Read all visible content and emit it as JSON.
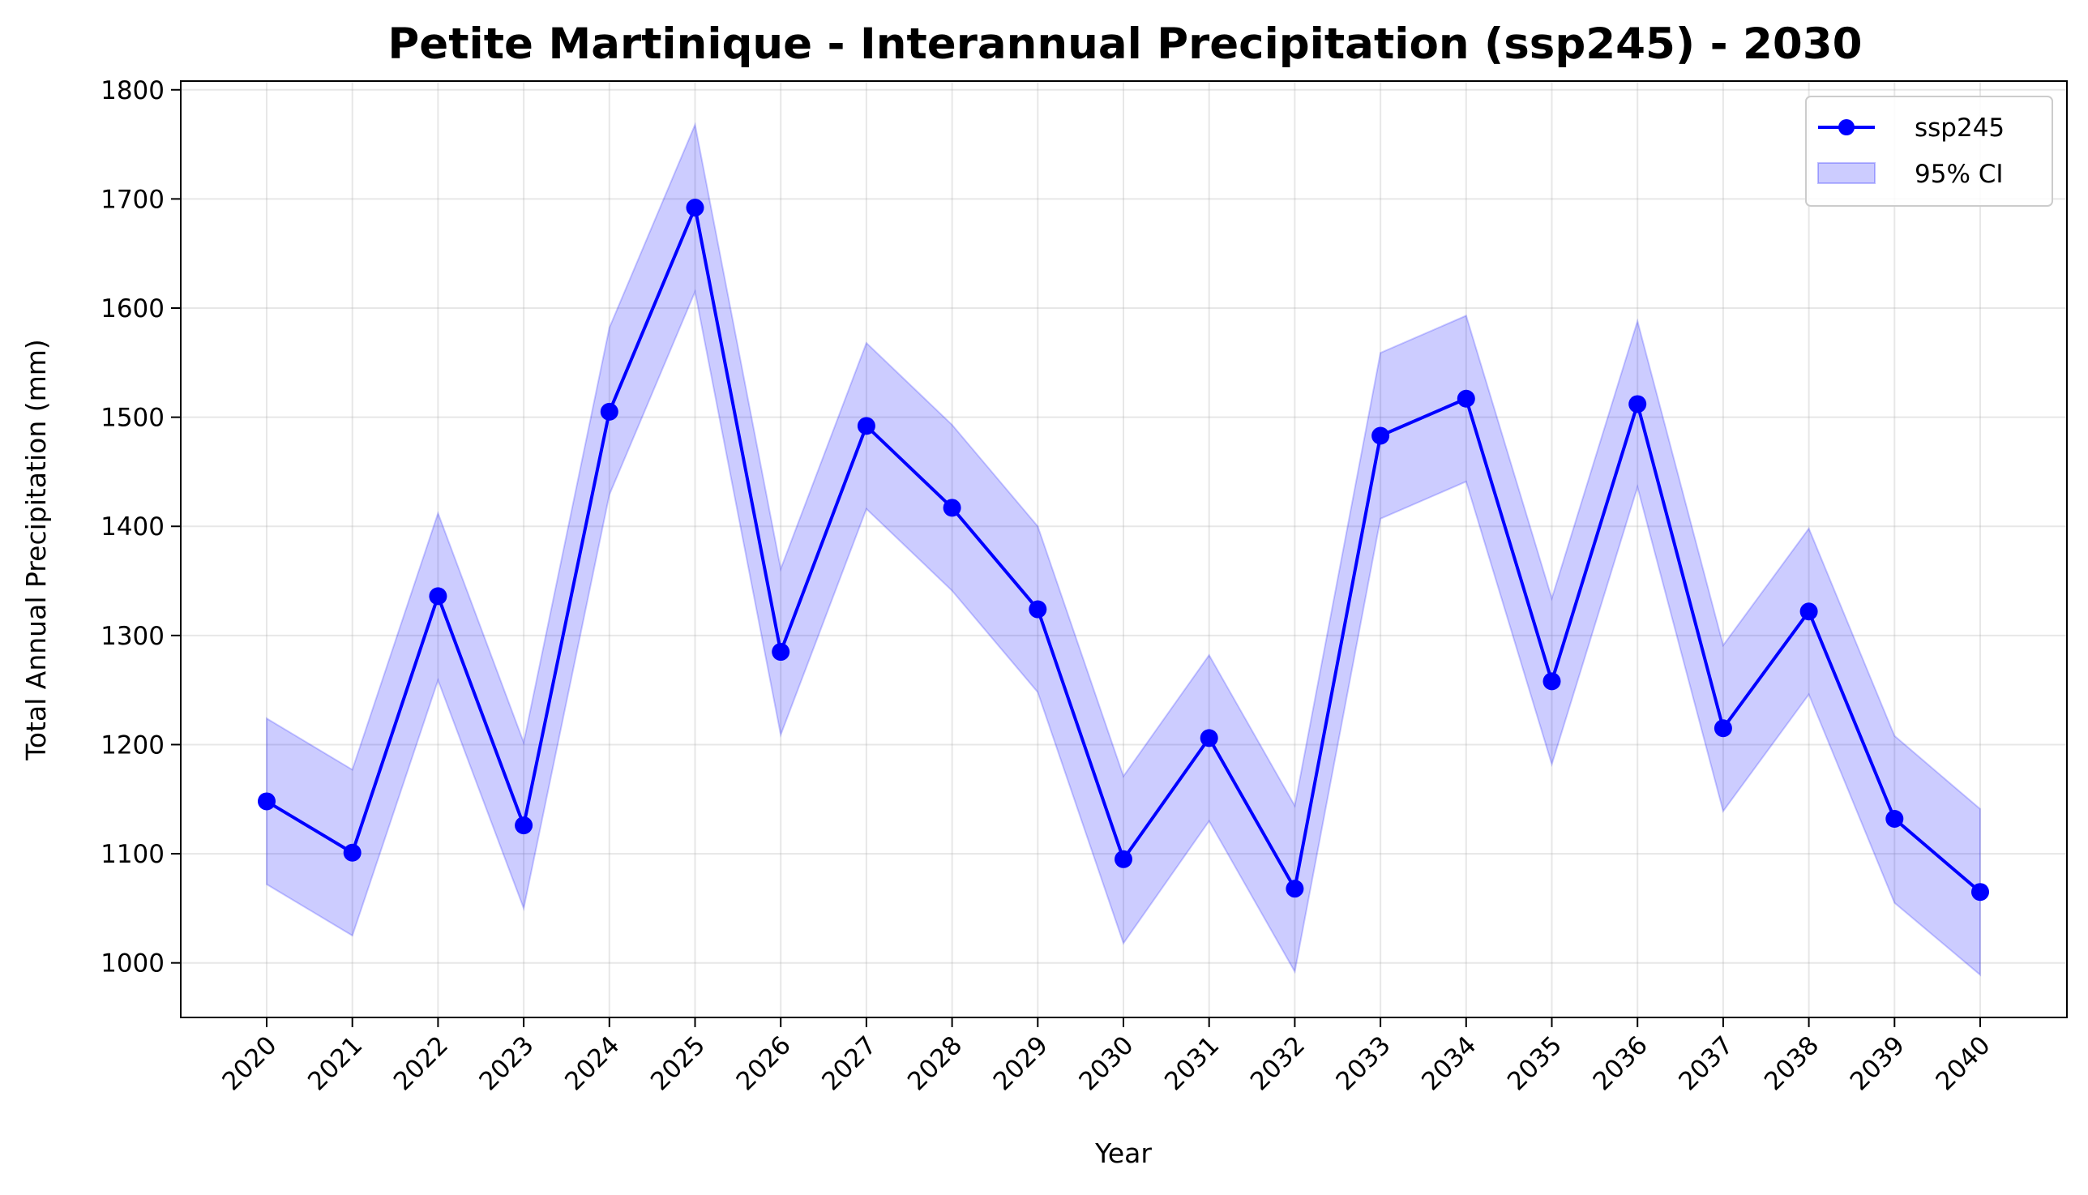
{
  "chart_data": {
    "type": "line",
    "title": "Petite Martinique - Interannual Precipitation (ssp245) - 2030",
    "xlabel": "Year",
    "ylabel": "Total Annual Precipitation (mm)",
    "x": [
      "2020",
      "2021",
      "2022",
      "2023",
      "2024",
      "2025",
      "2026",
      "2027",
      "2028",
      "2029",
      "2030",
      "2031",
      "2032",
      "2033",
      "2034",
      "2035",
      "2036",
      "2037",
      "2038",
      "2039",
      "2040"
    ],
    "ylim": [
      950,
      1808
    ],
    "yticks": [
      1000,
      1100,
      1200,
      1300,
      1400,
      1500,
      1600,
      1700,
      1800
    ],
    "grid": true,
    "legend_position": "top-right",
    "series": [
      {
        "name": "ssp245",
        "color": "#0000ff",
        "marker": "circle",
        "values": [
          1148,
          1101,
          1336,
          1126,
          1505,
          1692,
          1285,
          1492,
          1417,
          1324,
          1095,
          1206,
          1068,
          1483,
          1517,
          1258,
          1512,
          1215,
          1322,
          1132,
          1065
        ]
      }
    ],
    "confidence_band": {
      "name": "95% CI",
      "color": "#0000ff",
      "lower": [
        1072,
        1025,
        1259,
        1050,
        1429,
        1615,
        1209,
        1416,
        1341,
        1248,
        1018,
        1130,
        992,
        1407,
        1441,
        1182,
        1436,
        1139,
        1246,
        1055,
        989
      ],
      "upper": [
        1224,
        1177,
        1412,
        1202,
        1582,
        1768,
        1361,
        1568,
        1493,
        1400,
        1171,
        1282,
        1144,
        1559,
        1593,
        1334,
        1588,
        1291,
        1398,
        1208,
        1141
      ]
    }
  }
}
